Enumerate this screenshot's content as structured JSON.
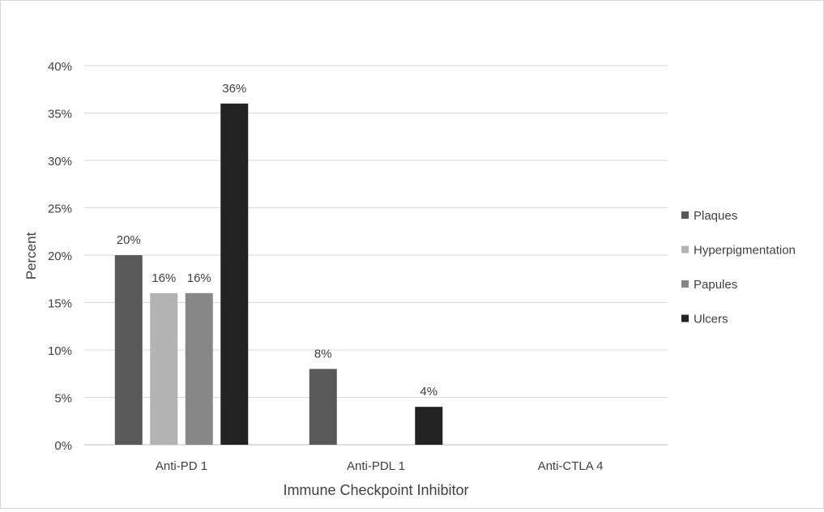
{
  "chart_data": {
    "type": "bar",
    "categories": [
      "Anti-PD 1",
      "Anti-PDL 1",
      "Anti-CTLA 4"
    ],
    "series": [
      {
        "name": "Plaques",
        "color": "#595959",
        "values": [
          20,
          8,
          null
        ],
        "labels": [
          "20%",
          "8%",
          ""
        ]
      },
      {
        "name": "Hyperpigmentation",
        "color": "#b3b3b3",
        "values": [
          16,
          null,
          null
        ],
        "labels": [
          "16%",
          "",
          ""
        ]
      },
      {
        "name": "Papules",
        "color": "#878787",
        "values": [
          16,
          null,
          null
        ],
        "labels": [
          "16%",
          "",
          ""
        ]
      },
      {
        "name": "Ulcers",
        "color": "#222222",
        "values": [
          36,
          4,
          null
        ],
        "labels": [
          "36%",
          "4%",
          ""
        ]
      }
    ],
    "xlabel": "Immune Checkpoint Inhibitor",
    "ylabel": "Percent",
    "ylim": [
      0,
      40
    ],
    "yticks": [
      0,
      5,
      10,
      15,
      20,
      25,
      30,
      35,
      40
    ],
    "ytick_labels": [
      "0%",
      "5%",
      "10%",
      "15%",
      "20%",
      "25%",
      "30%",
      "35%",
      "40%"
    ],
    "grid": "horizontal",
    "legend_position": "right",
    "colors": {
      "gridline": "#d9d9d9",
      "axis": "#bfbfbf",
      "text": "#404040"
    }
  }
}
